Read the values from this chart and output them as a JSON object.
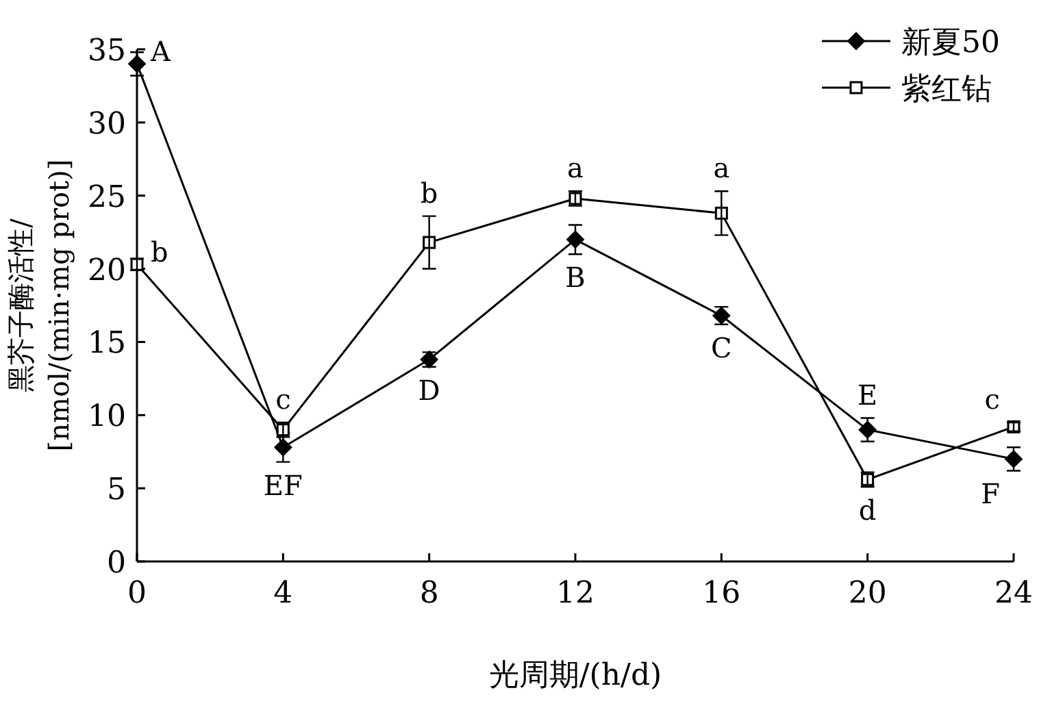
{
  "chart_data": {
    "type": "line",
    "xlabel": "光周期/(h/d)",
    "ylabel": "黑芥子酶活性/\n[nmol/(min·mg prot)]",
    "x": [
      0,
      4,
      8,
      12,
      16,
      20,
      24
    ],
    "xlim": [
      0,
      24
    ],
    "xticks": [
      0,
      4,
      8,
      12,
      16,
      20,
      24
    ],
    "ylim": [
      0,
      35
    ],
    "yticks": [
      0,
      5,
      10,
      15,
      20,
      25,
      30,
      35
    ],
    "legend": "top right",
    "line_style": "solid",
    "series": [
      {
        "name": "新夏50",
        "color": "#000000",
        "marker": "diamond",
        "values": [
          34,
          7.8,
          13.8,
          22,
          16.8,
          9,
          7
        ],
        "errors": [
          0.8,
          1,
          0.5,
          1,
          0.6,
          0.8,
          0.8
        ]
      },
      {
        "name": "紫红钻",
        "color": "#000000",
        "marker": "square",
        "values": [
          20.3,
          9,
          21.8,
          24.8,
          23.8,
          5.6,
          9.2
        ],
        "errors": [
          0.4,
          0.5,
          1.8,
          0.5,
          1.5,
          0.5,
          0.3
        ]
      }
    ],
    "annotations": [
      {
        "text": "A",
        "x": 0,
        "y": 34
      },
      {
        "text": "EF",
        "x": 4,
        "y": 7.8
      },
      {
        "text": "D",
        "x": 8,
        "y": 13.8
      },
      {
        "text": "B",
        "x": 12,
        "y": 22
      },
      {
        "text": "C",
        "x": 16,
        "y": 16.8
      },
      {
        "text": "E",
        "x": 20,
        "y": 9
      },
      {
        "text": "F",
        "x": 24,
        "y": 7
      },
      {
        "text": "b",
        "x": 0,
        "y": 20.3
      },
      {
        "text": "c",
        "x": 4,
        "y": 9
      },
      {
        "text": "b",
        "x": 8,
        "y": 21.8
      },
      {
        "text": "a",
        "x": 12,
        "y": 24.8
      },
      {
        "text": "a",
        "x": 16,
        "y": 23.8
      },
      {
        "text": "d",
        "x": 20,
        "y": 5.6
      },
      {
        "text": "c",
        "x": 24,
        "y": 9.2
      }
    ]
  }
}
